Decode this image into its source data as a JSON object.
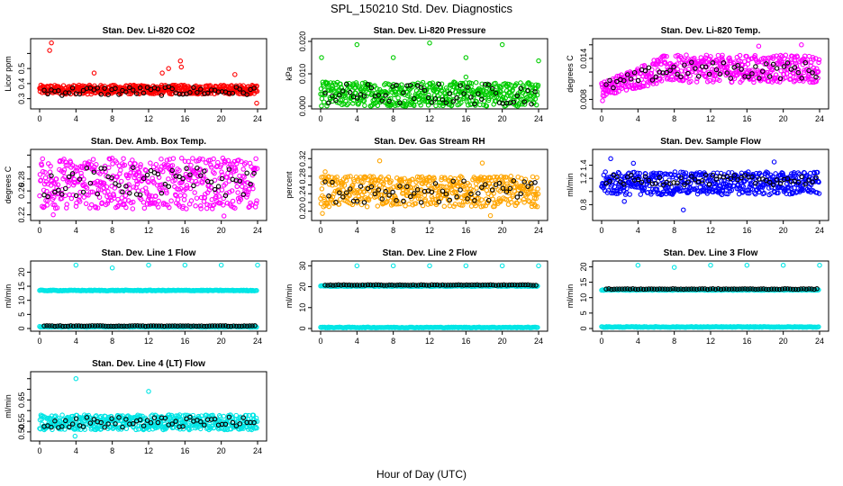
{
  "figure": {
    "title": "SPL_150210  Std. Dev. Diagnostics",
    "xlabel": "Hour of Day (UTC)"
  },
  "colors": {
    "co2": "#ff0000",
    "pressure": "#00cc00",
    "temp": "#ff00ff",
    "rh": "#ffa500",
    "flow": "#0000ff",
    "line": "#00e5e5",
    "black": "#000000"
  },
  "chart_data": [
    {
      "type": "scatter",
      "id": "co2",
      "title": "Stan. Dev. Li-820 CO2",
      "ylabel": "Licor ppm",
      "xlim": [
        0,
        24
      ],
      "xticks": [
        0,
        4,
        8,
        12,
        16,
        20,
        24
      ],
      "ylim": [
        0.25,
        0.68
      ],
      "yticks": [
        0.3,
        0.4,
        0.5,
        0.6
      ],
      "yticklabels": [
        "0.3",
        "0.4",
        "0.5",
        ""
      ],
      "color": "co2",
      "band": [
        0.33,
        0.39
      ],
      "outliers": [
        [
          1.3,
          0.67
        ],
        [
          1.1,
          0.62
        ],
        [
          6.0,
          0.47
        ],
        [
          13.5,
          0.47
        ],
        [
          14.2,
          0.5
        ],
        [
          15.5,
          0.55
        ],
        [
          15.6,
          0.51
        ],
        [
          21.5,
          0.46
        ],
        [
          23.9,
          0.27
        ]
      ],
      "black_level": [
        0.32,
        0.38
      ]
    },
    {
      "type": "scatter",
      "id": "pressure",
      "title": "Stan. Dev. Li-820 Pressure",
      "ylabel": "kPa",
      "xlim": [
        0,
        24
      ],
      "xticks": [
        0,
        4,
        8,
        12,
        16,
        20,
        24
      ],
      "ylim": [
        0,
        0.02
      ],
      "yticks": [
        0.0,
        0.01,
        0.02
      ],
      "yticklabels": [
        "0.000",
        "0.010",
        "0.020"
      ],
      "color": "pressure",
      "band": [
        0.0,
        0.0075
      ],
      "outliers": [
        [
          0.1,
          0.015
        ],
        [
          4.0,
          0.019
        ],
        [
          8.0,
          0.015
        ],
        [
          12.0,
          0.0195
        ],
        [
          16.0,
          0.015
        ],
        [
          20.0,
          0.019
        ],
        [
          24.0,
          0.014
        ],
        [
          16.0,
          0.009
        ]
      ],
      "black_level": [
        0.0005,
        0.007
      ]
    },
    {
      "type": "scatter",
      "id": "temp",
      "title": "Stan. Dev. Li-820 Temp.",
      "ylabel": "degrees C",
      "xlim": [
        0,
        24
      ],
      "xticks": [
        0,
        4,
        8,
        12,
        16,
        20,
        24
      ],
      "ylim": [
        0.007,
        0.0165
      ],
      "yticks": [
        0.008,
        0.01,
        0.012,
        0.014,
        0.016
      ],
      "yticklabels": [
        "0.008",
        "",
        "",
        "0.014",
        ""
      ],
      "color": "temp",
      "trend": true,
      "band": [
        0.0105,
        0.0145
      ],
      "outliers": [
        [
          0.1,
          0.0078
        ],
        [
          0.3,
          0.0085
        ],
        [
          17.3,
          0.0158
        ],
        [
          22.0,
          0.016
        ]
      ],
      "black_level": [
        0.011,
        0.0135
      ]
    },
    {
      "type": "scatter",
      "id": "boxtemp",
      "title": "Stan. Dev. Amb. Box Temp.",
      "ylabel": "degrees C",
      "xlim": [
        0,
        24
      ],
      "xticks": [
        0,
        4,
        8,
        12,
        16,
        20,
        24
      ],
      "ylim": [
        0.215,
        0.325
      ],
      "yticks": [
        0.22,
        0.24,
        0.26,
        0.28,
        0.3,
        0.32
      ],
      "yticklabels": [
        "0.22",
        "",
        "0.26",
        "0.28",
        "",
        ""
      ],
      "color": "temp",
      "band": [
        0.23,
        0.315
      ],
      "outliers": [
        [
          1.5,
          0.22
        ],
        [
          20.3,
          0.218
        ]
      ],
      "black_level": [
        0.25,
        0.3
      ]
    },
    {
      "type": "scatter",
      "id": "rh",
      "title": "Stan. Dev. Gas Stream RH",
      "ylabel": "percent",
      "xlim": [
        0,
        24
      ],
      "xticks": [
        0,
        4,
        8,
        12,
        16,
        20,
        24
      ],
      "ylim": [
        0.185,
        0.335
      ],
      "yticks": [
        0.2,
        0.22,
        0.24,
        0.26,
        0.28,
        0.3,
        0.32
      ],
      "yticklabels": [
        "0.20",
        "",
        "0.24",
        "",
        "0.28",
        "",
        "0.32"
      ],
      "color": "rh",
      "band": [
        0.21,
        0.28
      ],
      "outliers": [
        [
          0.5,
          0.29
        ],
        [
          6.5,
          0.315
        ],
        [
          17.8,
          0.31
        ],
        [
          0.2,
          0.195
        ],
        [
          18.7,
          0.19
        ]
      ],
      "black_level": [
        0.22,
        0.27
      ]
    },
    {
      "type": "scatter",
      "id": "sampleflow",
      "title": "Stan. Dev. Sample Flow",
      "ylabel": "ml/min",
      "xlim": [
        0,
        24
      ],
      "xticks": [
        0,
        4,
        8,
        12,
        16,
        20,
        24
      ],
      "ylim": [
        0.6,
        1.6
      ],
      "yticks": [
        0.8,
        1.0,
        1.2,
        1.4
      ],
      "yticklabels": [
        "0.8",
        "",
        "1.2",
        "1.4"
      ],
      "color": "flow",
      "band": [
        0.95,
        1.3
      ],
      "outliers": [
        [
          1.0,
          1.5
        ],
        [
          2.5,
          0.85
        ],
        [
          9.0,
          0.72
        ],
        [
          19.0,
          1.45
        ],
        [
          3.5,
          1.43
        ]
      ],
      "black_level": [
        1.1,
        1.25
      ]
    },
    {
      "type": "scatter",
      "id": "line1",
      "title": "Stan. Dev. Line 1 Flow",
      "ylabel": "ml/min",
      "xlim": [
        0,
        24
      ],
      "xticks": [
        0,
        4,
        8,
        12,
        16,
        20,
        24
      ],
      "ylim": [
        0,
        23
      ],
      "yticks": [
        0,
        5,
        10,
        15,
        20
      ],
      "yticklabels": [
        "0",
        "5",
        "10",
        "15",
        "20"
      ],
      "color": "line",
      "levels": [
        13.5,
        0.6
      ],
      "outliers": [
        [
          4,
          22.5
        ],
        [
          8,
          21.5
        ],
        [
          12,
          22.5
        ],
        [
          16,
          22.5
        ],
        [
          20,
          22.5
        ],
        [
          24,
          22.5
        ]
      ],
      "black_line": 0.9
    },
    {
      "type": "scatter",
      "id": "line2",
      "title": "Stan. Dev. Line 2 Flow",
      "ylabel": "ml/min",
      "xlim": [
        0,
        24
      ],
      "xticks": [
        0,
        4,
        8,
        12,
        16,
        20,
        24
      ],
      "ylim": [
        0,
        31
      ],
      "yticks": [
        0,
        10,
        20,
        30
      ],
      "yticklabels": [
        "0",
        "10",
        "20",
        "30"
      ],
      "color": "line",
      "levels": [
        20.3,
        0.5
      ],
      "outliers": [
        [
          4,
          30
        ],
        [
          8,
          30
        ],
        [
          12,
          30
        ],
        [
          16,
          30
        ],
        [
          20,
          30
        ],
        [
          24,
          30
        ]
      ],
      "black_line": 20.8
    },
    {
      "type": "scatter",
      "id": "line3",
      "title": "Stan. Dev. Line 3 Flow",
      "ylabel": "ml/min",
      "xlim": [
        0,
        24
      ],
      "xticks": [
        0,
        4,
        8,
        12,
        16,
        20,
        24
      ],
      "ylim": [
        0,
        21
      ],
      "yticks": [
        0,
        5,
        10,
        15,
        20
      ],
      "yticklabels": [
        "0",
        "5",
        "10",
        "15",
        "20"
      ],
      "color": "line",
      "levels": [
        12.5,
        0.5
      ],
      "outliers": [
        [
          4,
          20.5
        ],
        [
          8,
          19.8
        ],
        [
          12,
          20.5
        ],
        [
          16,
          20.5
        ],
        [
          20,
          20.5
        ],
        [
          24,
          20.5
        ]
      ],
      "black_line": 12.8
    },
    {
      "type": "scatter",
      "id": "line4",
      "title": "Stan. Dev. Line 4 (LT) Flow",
      "ylabel": "ml/min",
      "xlim": [
        0,
        24
      ],
      "xticks": [
        0,
        4,
        8,
        12,
        16,
        20,
        24
      ],
      "ylim": [
        0.47,
        0.77
      ],
      "yticks": [
        0.5,
        0.55,
        0.6,
        0.65,
        0.7,
        0.75
      ],
      "yticklabels": [
        "0.50",
        "0.55",
        "",
        "0.65",
        "",
        ""
      ],
      "color": "line",
      "band": [
        0.51,
        0.58
      ],
      "outliers": [
        [
          4,
          0.75
        ],
        [
          12,
          0.69
        ],
        [
          3.9,
          0.48
        ]
      ],
      "black_level": [
        0.52,
        0.57
      ]
    }
  ]
}
